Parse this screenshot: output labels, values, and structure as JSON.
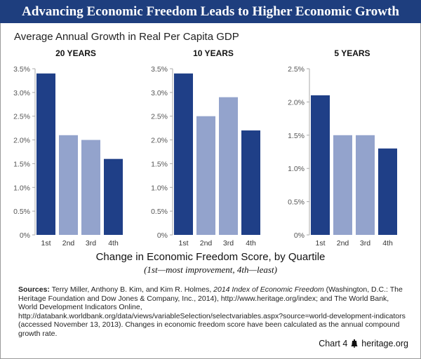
{
  "title": "Advancing Economic Freedom Leads to Higher Economic Growth",
  "subtitle": "Average Annual Growth in Real Per Capita GDP",
  "colors": {
    "title_bar": "#1e3e7e",
    "dark_bar": "#1f3f87",
    "light_bar": "#93a3cc",
    "axis": "#aaaaaa"
  },
  "chart_data": [
    {
      "type": "bar",
      "title": "20 YEARS",
      "categories": [
        "1st",
        "2nd",
        "3rd",
        "4th"
      ],
      "values": [
        3.4,
        2.1,
        2.0,
        1.6
      ],
      "unit": "%",
      "ylim": [
        0,
        3.5
      ],
      "yticks": [
        "0%",
        "0.5%",
        "1.0%",
        "1.5%",
        "2.0%",
        "2.5%",
        "3.0%",
        "3.5%"
      ],
      "ytick_values": [
        0,
        0.5,
        1.0,
        1.5,
        2.0,
        2.5,
        3.0,
        3.5
      ],
      "bar_colors": [
        "dark",
        "light",
        "light",
        "dark"
      ]
    },
    {
      "type": "bar",
      "title": "10 YEARS",
      "categories": [
        "1st",
        "2nd",
        "3rd",
        "4th"
      ],
      "values": [
        3.4,
        2.5,
        2.9,
        2.2
      ],
      "unit": "%",
      "ylim": [
        0,
        3.5
      ],
      "yticks": [
        "0%",
        "0.5%",
        "1.0%",
        "1.5%",
        "2.0%",
        "2.5%",
        "3.0%",
        "3.5%"
      ],
      "ytick_values": [
        0,
        0.5,
        1.0,
        1.5,
        2.0,
        2.5,
        3.0,
        3.5
      ],
      "bar_colors": [
        "dark",
        "light",
        "light",
        "dark"
      ]
    },
    {
      "type": "bar",
      "title": "5 YEARS",
      "categories": [
        "1st",
        "2nd",
        "3rd",
        "4th"
      ],
      "values": [
        2.1,
        1.5,
        1.5,
        1.3
      ],
      "unit": "%",
      "ylim": [
        0,
        2.5
      ],
      "yticks": [
        "0%",
        "0.5%",
        "1.0%",
        "1.5%",
        "2.0%",
        "2.5%"
      ],
      "ytick_values": [
        0,
        0.5,
        1.0,
        1.5,
        2.0,
        2.5
      ],
      "bar_colors": [
        "dark",
        "light",
        "light",
        "dark"
      ]
    }
  ],
  "xlabel": "Change in Economic Freedom Score, by Quartile",
  "xnote": "(1st—most improvement, 4th—least)",
  "sources": {
    "label": "Sources:",
    "part1": " Terry Miller, Anthony B. Kim, and Kim R. Holmes, ",
    "book": "2014 Index of Economic Freedom",
    "part2": " (Washington, D.C.: The Heritage Foundation and Dow Jones & Company, Inc., 2014), http://www.heritage.org/index; and The World Bank, World Development Indicators Online, http://databank.worldbank.org/data/views/variableSelection/selectvariables.aspx?source=world-development-indicators (accessed November 13, 2013). Changes in economic freedom score have been calculated as the annual compound growth rate."
  },
  "footer": {
    "chart_number": "Chart 4",
    "site": "heritage.org",
    "icon": "liberty-bell-icon"
  }
}
